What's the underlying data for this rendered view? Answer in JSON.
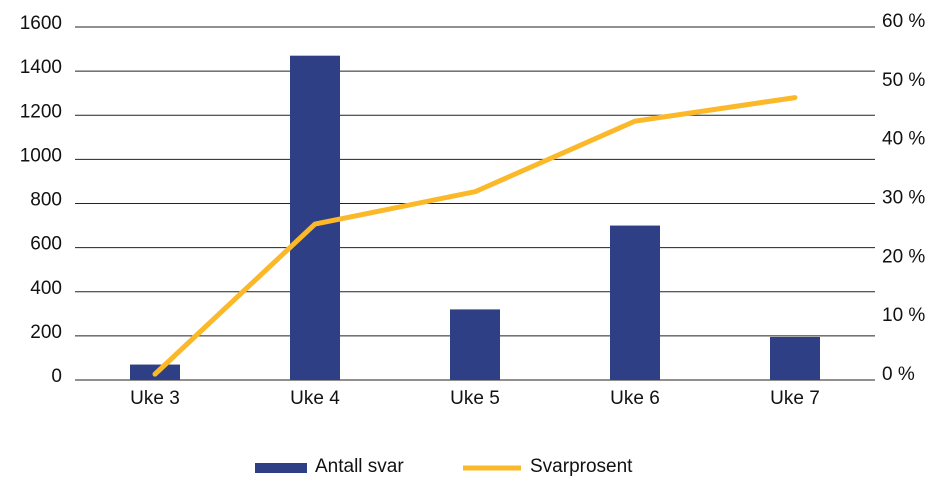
{
  "chart_data": {
    "type": "bar_line",
    "categories": [
      "Uke 3",
      "Uke 4",
      "Uke 5",
      "Uke 6",
      "Uke 7"
    ],
    "series": [
      {
        "name": "Antall svar",
        "color": "#2e3f85",
        "type": "bar",
        "values": [
          70,
          1470,
          320,
          700,
          195
        ]
      },
      {
        "name": "Svarprosent",
        "color": "#fbb92a",
        "type": "line",
        "axis": "y2",
        "values": [
          1,
          26.5,
          32,
          44,
          48
        ]
      }
    ],
    "ylim": [
      0,
      1600
    ],
    "yticks": [
      0,
      200,
      400,
      600,
      800,
      1000,
      1200,
      1400,
      1600
    ],
    "y2lim": [
      0,
      60
    ],
    "y2ticks": [
      {
        "value": 0,
        "label": "0 %"
      },
      {
        "value": 10,
        "label": "10 %"
      },
      {
        "value": 20,
        "label": "20 %"
      },
      {
        "value": 30,
        "label": "30 %"
      },
      {
        "value": 40,
        "label": "40 %"
      },
      {
        "value": 50,
        "label": "50 %"
      },
      {
        "value": 60,
        "label": "60 %"
      }
    ],
    "grid": true,
    "legend": "bottom"
  }
}
